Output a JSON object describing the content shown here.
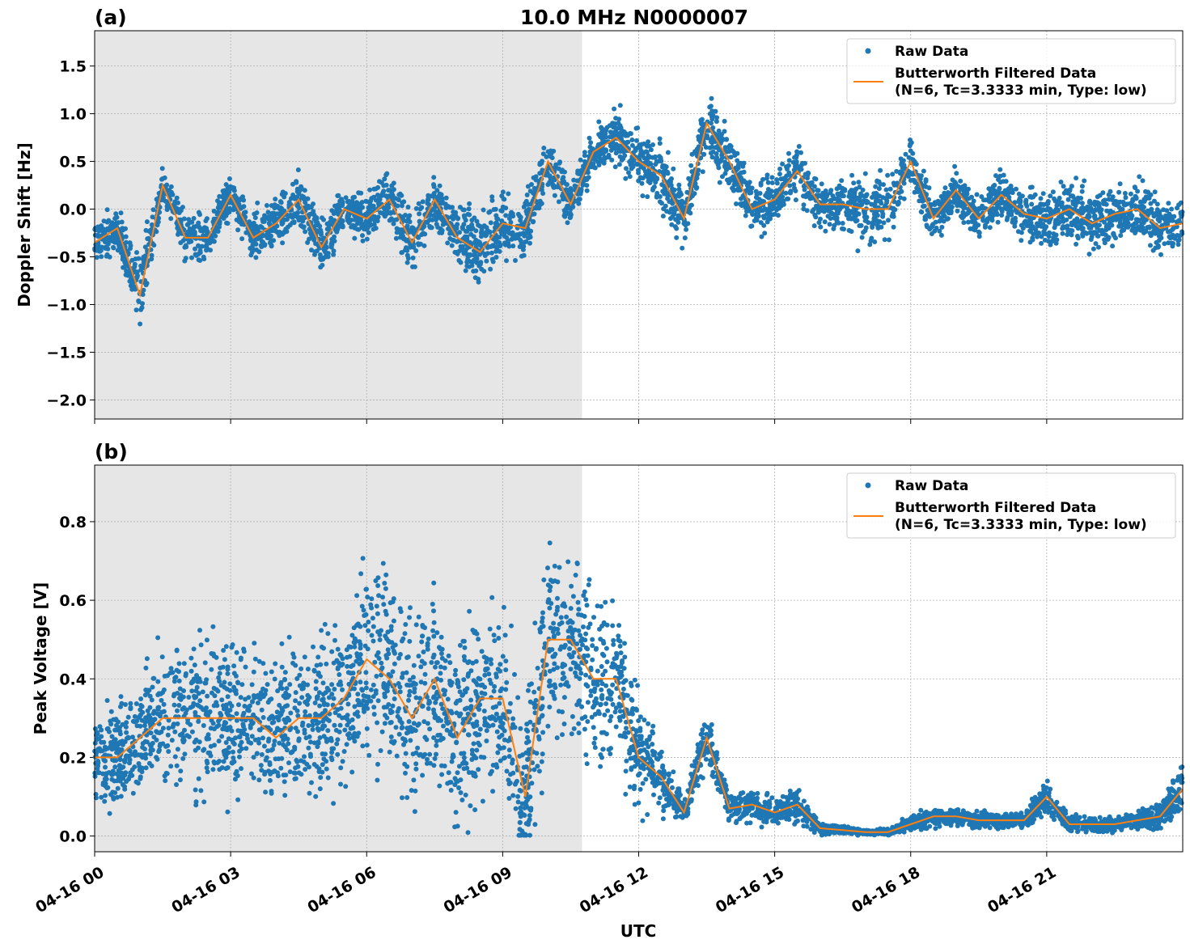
{
  "chart_data": [
    {
      "type": "scatter+line",
      "panel_label": "(a)",
      "title": "10.0 MHz N0000007",
      "xlabel": "",
      "ylabel": "Doppler Shift [Hz]",
      "ylim": [
        -2.2,
        1.87
      ],
      "yticks": [
        1.5,
        1.0,
        0.5,
        0.0,
        -0.5,
        -1.0,
        -1.5,
        -2.0
      ],
      "ytick_labels": [
        "1.5",
        "1.0",
        "0.5",
        "0.0",
        "−0.5",
        "−1.0",
        "−1.5",
        "−2.0"
      ],
      "grid": true,
      "legend": {
        "position": "top-right",
        "entries": [
          "Raw Data",
          "Butterworth Filtered Data",
          "(N=6, Tc=3.3333 min, Type: low)"
        ]
      },
      "shaded_interval": [
        "04-16 00:00",
        "04-16 10:45"
      ],
      "x": [
        "00:00",
        "00:30",
        "01:00",
        "01:30",
        "02:00",
        "02:30",
        "03:00",
        "03:30",
        "04:00",
        "04:30",
        "05:00",
        "05:30",
        "06:00",
        "06:30",
        "07:00",
        "07:30",
        "08:00",
        "08:30",
        "09:00",
        "09:30",
        "10:00",
        "10:30",
        "11:00",
        "11:30",
        "12:00",
        "12:30",
        "13:00",
        "13:30",
        "14:00",
        "14:30",
        "15:00",
        "15:30",
        "16:00",
        "16:30",
        "17:00",
        "17:30",
        "18:00",
        "18:30",
        "19:00",
        "19:30",
        "20:00",
        "20:30",
        "21:00",
        "21:30",
        "22:00",
        "22:30",
        "23:00",
        "23:30",
        "24:00"
      ],
      "series": [
        {
          "name": "Butterworth Filtered Data",
          "type": "line",
          "values": [
            -0.35,
            -0.2,
            -0.9,
            0.25,
            -0.3,
            -0.3,
            0.15,
            -0.3,
            -0.15,
            0.1,
            -0.4,
            0.0,
            -0.1,
            0.1,
            -0.35,
            0.1,
            -0.3,
            -0.45,
            -0.15,
            -0.2,
            0.5,
            0.05,
            0.6,
            0.75,
            0.5,
            0.35,
            -0.1,
            0.9,
            0.5,
            0.0,
            0.1,
            0.4,
            0.05,
            0.05,
            0.0,
            0.0,
            0.5,
            -0.1,
            0.2,
            -0.1,
            0.15,
            -0.05,
            -0.1,
            0.0,
            -0.15,
            -0.05,
            0.0,
            -0.2,
            -0.15
          ]
        },
        {
          "name": "Raw Data",
          "type": "scatter",
          "spread_about_filtered": [
            0.3,
            0.3,
            0.55,
            0.3,
            0.35,
            0.3,
            0.3,
            0.35,
            0.35,
            0.45,
            0.45,
            0.3,
            0.35,
            0.4,
            0.45,
            0.35,
            0.45,
            0.55,
            0.5,
            0.5,
            0.35,
            0.35,
            0.3,
            0.4,
            0.4,
            0.45,
            0.4,
            0.45,
            0.4,
            0.4,
            0.35,
            0.4,
            0.35,
            0.45,
            0.5,
            0.45,
            0.4,
            0.35,
            0.35,
            0.3,
            0.35,
            0.35,
            0.4,
            0.45,
            0.45,
            0.45,
            0.45,
            0.4,
            0.35
          ]
        }
      ]
    },
    {
      "type": "scatter+line",
      "panel_label": "(b)",
      "title": "",
      "xlabel": "UTC",
      "ylabel": "Peak Voltage [V]",
      "ylim": [
        -0.04,
        0.944
      ],
      "yticks": [
        0.0,
        0.2,
        0.4,
        0.6,
        0.8
      ],
      "ytick_labels": [
        "0.0",
        "0.2",
        "0.4",
        "0.6",
        "0.8"
      ],
      "xlim": [
        "04-16 00:00",
        "04-17 00:00"
      ],
      "xtick_labels": [
        "04-16 00",
        "04-16 03",
        "04-16 06",
        "04-16 09",
        "04-16 12",
        "04-16 15",
        "04-16 18",
        "04-16 21"
      ],
      "grid": true,
      "legend": {
        "position": "top-right",
        "entries": [
          "Raw Data",
          "Butterworth Filtered Data",
          "(N=6, Tc=3.3333 min, Type: low)"
        ]
      },
      "shaded_interval": [
        "04-16 00:00",
        "04-16 10:45"
      ],
      "x": [
        "00:00",
        "00:30",
        "01:00",
        "01:30",
        "02:00",
        "02:30",
        "03:00",
        "03:30",
        "04:00",
        "04:30",
        "05:00",
        "05:30",
        "06:00",
        "06:30",
        "07:00",
        "07:30",
        "08:00",
        "08:30",
        "09:00",
        "09:30",
        "10:00",
        "10:30",
        "11:00",
        "11:30",
        "12:00",
        "12:30",
        "13:00",
        "13:30",
        "14:00",
        "14:30",
        "15:00",
        "15:30",
        "16:00",
        "16:30",
        "17:00",
        "17:30",
        "18:00",
        "18:30",
        "19:00",
        "19:30",
        "20:00",
        "20:30",
        "21:00",
        "21:30",
        "22:00",
        "22:30",
        "23:00",
        "23:30",
        "24:00"
      ],
      "series": [
        {
          "name": "Butterworth Filtered Data",
          "type": "line",
          "values": [
            0.2,
            0.2,
            0.25,
            0.3,
            0.3,
            0.3,
            0.3,
            0.3,
            0.25,
            0.3,
            0.3,
            0.35,
            0.45,
            0.4,
            0.3,
            0.4,
            0.25,
            0.35,
            0.35,
            0.1,
            0.5,
            0.5,
            0.4,
            0.4,
            0.2,
            0.15,
            0.06,
            0.25,
            0.07,
            0.08,
            0.06,
            0.08,
            0.02,
            0.015,
            0.01,
            0.01,
            0.03,
            0.05,
            0.05,
            0.04,
            0.04,
            0.04,
            0.1,
            0.03,
            0.03,
            0.03,
            0.04,
            0.05,
            0.12
          ]
        },
        {
          "name": "Raw Data",
          "type": "scatter",
          "spread_about_filtered": [
            0.15,
            0.18,
            0.2,
            0.25,
            0.28,
            0.3,
            0.3,
            0.28,
            0.25,
            0.3,
            0.3,
            0.32,
            0.35,
            0.35,
            0.35,
            0.35,
            0.3,
            0.32,
            0.32,
            0.3,
            0.32,
            0.3,
            0.3,
            0.3,
            0.2,
            0.12,
            0.05,
            0.1,
            0.05,
            0.06,
            0.05,
            0.06,
            0.02,
            0.015,
            0.01,
            0.01,
            0.03,
            0.04,
            0.03,
            0.03,
            0.03,
            0.03,
            0.06,
            0.03,
            0.03,
            0.03,
            0.03,
            0.05,
            0.1
          ]
        }
      ]
    }
  ],
  "colors": {
    "raw": "#1f77b4",
    "filtered": "#ff7f0e",
    "shade": "#e6e6e6",
    "grid": "#b0b0b0"
  }
}
